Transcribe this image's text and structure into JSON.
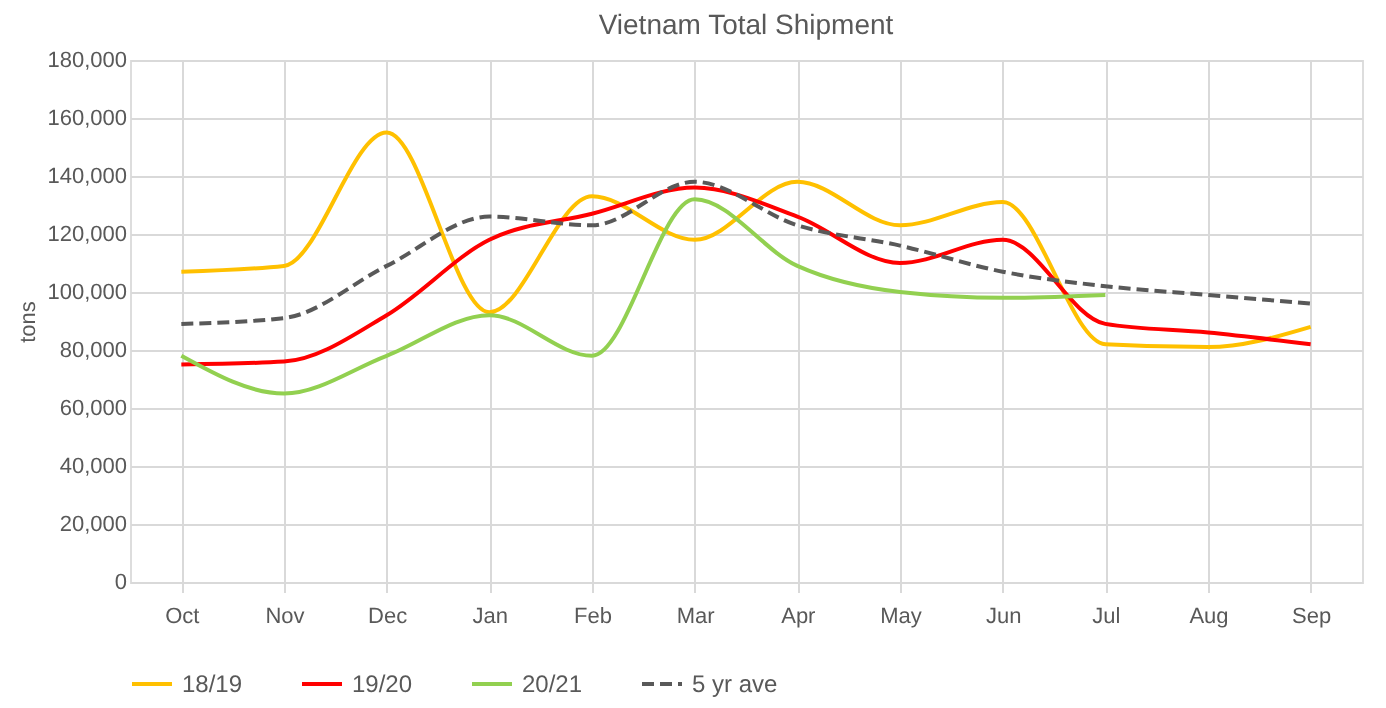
{
  "chart_data": {
    "type": "line",
    "title": "Vietnam Total Shipment",
    "ylabel": "tons",
    "categories": [
      "Oct",
      "Nov",
      "Dec",
      "Jan",
      "Feb",
      "Mar",
      "Apr",
      "May",
      "Jun",
      "Jul",
      "Aug",
      "Sep"
    ],
    "series": [
      {
        "name": "18/19",
        "color": "#ffc000",
        "line_style": "solid",
        "values": [
          107000,
          109000,
          155000,
          93000,
          133000,
          118000,
          138000,
          123000,
          131000,
          82000,
          81000,
          88000
        ]
      },
      {
        "name": "19/20",
        "color": "#ff0000",
        "line_style": "solid",
        "values": [
          75000,
          76000,
          92000,
          118000,
          127000,
          136000,
          126000,
          110000,
          118000,
          89000,
          86000,
          82000
        ]
      },
      {
        "name": "20/21",
        "color": "#92d050",
        "line_style": "solid",
        "values": [
          78000,
          65000,
          78000,
          92000,
          78000,
          132000,
          109000,
          100000,
          98000,
          99000,
          null,
          null
        ]
      },
      {
        "name": "5 yr ave",
        "color": "#595959",
        "line_style": "dashed",
        "values": [
          89000,
          91000,
          109000,
          126000,
          123000,
          138000,
          123000,
          116000,
          107000,
          102000,
          99000,
          96000
        ]
      }
    ],
    "ylim": [
      0,
      180000
    ],
    "yticks": [
      0,
      {
        "value": 20000,
        "label": "20,000"
      },
      {
        "value": 40000,
        "label": "40,000"
      },
      {
        "value": 60000,
        "label": "60,000"
      },
      {
        "value": 80000,
        "label": "80,000"
      },
      {
        "value": 100000,
        "label": "100,000"
      },
      {
        "value": 120000,
        "label": "120,000"
      },
      {
        "value": 140000,
        "label": "140,000"
      },
      {
        "value": 160000,
        "label": "160,000"
      },
      {
        "value": 180000,
        "label": "180,000"
      }
    ],
    "grid": true,
    "legend": "bottom",
    "marker": "none"
  }
}
